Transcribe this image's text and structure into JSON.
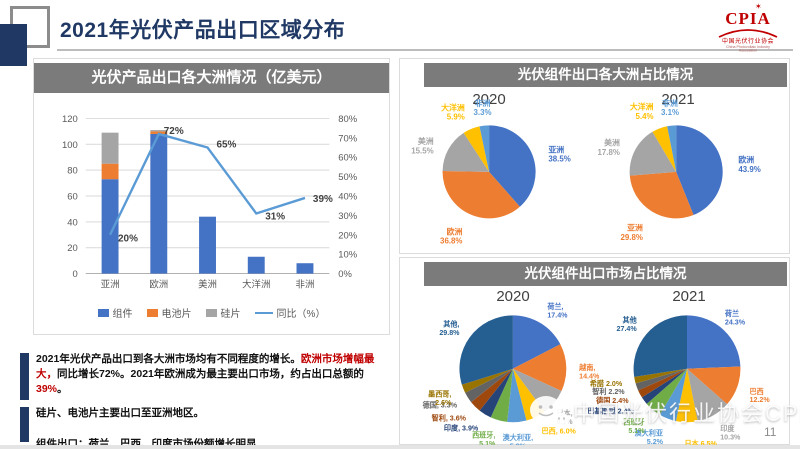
{
  "slide": {
    "title": "2021年光伏产品出口区域分布",
    "page_number": "11",
    "watermark": "中国光伏行业协会CPIA",
    "logo": {
      "abbr": "CPIA",
      "cn": "中国光伏行业协会",
      "en": "China Photovoltaic Industry Association"
    }
  },
  "notes": {
    "p1": [
      "2021年光伏产品出口到各大洲市场均有不同程度的增长。",
      "欧洲市场增幅最大，",
      "同比增长72%。2021年欧洲成为最主要出口市场，约占出口总额的",
      "39%",
      "。"
    ],
    "p2": "硅片、电池片主要出口至亚洲地区。",
    "p3": "组件出口：荷兰、巴西、印度市场份额增长明显"
  },
  "chart_data": [
    {
      "type": "bar",
      "title": "光伏产品出口各大洲情况（亿美元）",
      "categories": [
        "亚洲",
        "欧洲",
        "美洲",
        "大洋洲",
        "非洲"
      ],
      "series": [
        {
          "name": "组件",
          "type": "bar",
          "color": "#4472C4",
          "values": [
            73,
            108,
            44,
            13,
            8
          ]
        },
        {
          "name": "电池片",
          "type": "bar",
          "color": "#ED7D31",
          "values": [
            12,
            2,
            0,
            0,
            0
          ]
        },
        {
          "name": "硅片",
          "type": "bar",
          "color": "#A5A5A5",
          "values": [
            24,
            1,
            0,
            0,
            0
          ]
        },
        {
          "name": "同比（%）",
          "type": "line",
          "color": "#5B9BD5",
          "values": [
            20,
            72,
            65,
            31,
            39
          ],
          "point_labels": [
            "20%",
            "72%",
            "65%",
            "31%",
            "39%"
          ]
        }
      ],
      "y_left": {
        "min": 0,
        "max": 120,
        "step": 20,
        "ticks": [
          "0",
          "20",
          "40",
          "60",
          "80",
          "100",
          "120"
        ]
      },
      "y_right": {
        "max": 80,
        "ticks": [
          "0%",
          "10%",
          "20%",
          "30%",
          "40%",
          "50%",
          "60%",
          "70%",
          "80%"
        ]
      },
      "grid": true,
      "legend_position": "bottom"
    },
    {
      "type": "pie",
      "title": "光伏组件出口各大洲占比情况",
      "charts": [
        {
          "year": "2020",
          "slices": [
            {
              "name": "亚洲",
              "value": 38.5,
              "color": "#4472C4",
              "label": "亚洲\n38.5%"
            },
            {
              "name": "欧洲",
              "value": 36.8,
              "color": "#ED7D31",
              "label": "欧洲\n36.8%"
            },
            {
              "name": "美洲",
              "value": 15.5,
              "color": "#A5A5A5",
              "label": "美洲\n15.5%"
            },
            {
              "name": "大洋洲",
              "value": 5.9,
              "color": "#FFC000",
              "label": "大洋洲\n5.9%"
            },
            {
              "name": "非洲",
              "value": 3.3,
              "color": "#5B9BD5",
              "label": "非洲\n3.3%"
            }
          ]
        },
        {
          "year": "2021",
          "slices": [
            {
              "name": "欧洲",
              "value": 43.9,
              "color": "#4472C4",
              "label": "欧洲\n43.9%"
            },
            {
              "name": "亚洲",
              "value": 29.8,
              "color": "#ED7D31",
              "label": "亚洲\n29.8%"
            },
            {
              "name": "美洲",
              "value": 17.8,
              "color": "#A5A5A5",
              "label": "美洲\n17.8%"
            },
            {
              "name": "大洋洲",
              "value": 5.4,
              "color": "#FFC000",
              "label": "大洋洲\n5.4%"
            },
            {
              "name": "非洲",
              "value": 3.1,
              "color": "#5B9BD5",
              "label": "非洲\n3.1%"
            }
          ]
        }
      ]
    },
    {
      "type": "pie",
      "title": "光伏组件出口市场占比情况",
      "charts": [
        {
          "year": "2020",
          "slices": [
            {
              "name": "荷兰",
              "value": 17.4,
              "color": "#4472C4",
              "label": "荷兰,\n17.4%"
            },
            {
              "name": "越南",
              "value": 14.4,
              "color": "#ED7D31",
              "label": "越南,\n14.4%"
            },
            {
              "name": "日本",
              "value": 8.1,
              "color": "#A5A5A5",
              "label": "日本,\n8.1%"
            },
            {
              "name": "巴西",
              "value": 6.0,
              "color": "#FFC000",
              "label": "巴西, 6.0%"
            },
            {
              "name": "澳大利亚",
              "value": 5.8,
              "color": "#5B9BD5",
              "label": "澳大利亚,\n5.8%"
            },
            {
              "name": "西班牙",
              "value": 5.1,
              "color": "#70AD47",
              "label": "西班牙,\n5.1%"
            },
            {
              "name": "印度",
              "value": 3.9,
              "color": "#264478",
              "label": "印度, 3.9%"
            },
            {
              "name": "智利",
              "value": 3.6,
              "color": "#9E480E",
              "label": "智利, 3.6%"
            },
            {
              "name": "德国",
              "value": 3.3,
              "color": "#636363",
              "label": "德国, 3.3%"
            },
            {
              "name": "墨西哥",
              "value": 2.6,
              "color": "#997300",
              "label": "墨西哥,\n2.6%"
            },
            {
              "name": "其他",
              "value": 29.8,
              "color": "#255E91",
              "label": "其他,\n29.8%"
            }
          ]
        },
        {
          "year": "2021",
          "slices": [
            {
              "name": "荷兰",
              "value": 24.3,
              "color": "#4472C4",
              "label": "荷兰\n24.3%"
            },
            {
              "name": "巴西",
              "value": 12.2,
              "color": "#ED7D31",
              "label": "巴西\n12.2%"
            },
            {
              "name": "印度",
              "value": 10.3,
              "color": "#A5A5A5",
              "label": "印度\n10.3%"
            },
            {
              "name": "日本",
              "value": 6.5,
              "color": "#FFC000",
              "label": "日本 6.5%"
            },
            {
              "name": "澳大利亚",
              "value": 5.2,
              "color": "#5B9BD5",
              "label": "澳大利亚\n5.2%"
            },
            {
              "name": "西班牙",
              "value": 5.1,
              "color": "#70AD47",
              "label": "西班牙\n5.1%"
            },
            {
              "name": "巴基斯坦",
              "value": 2.4,
              "color": "#264478",
              "label": "巴基斯坦 2.4%"
            },
            {
              "name": "德国",
              "value": 2.4,
              "color": "#9E480E",
              "label": "德国 2.4%"
            },
            {
              "name": "智利",
              "value": 2.2,
              "color": "#636363",
              "label": "智利 2.2%"
            },
            {
              "name": "希腊",
              "value": 2.0,
              "color": "#997300",
              "label": "希腊 2.0%"
            },
            {
              "name": "其他",
              "value": 27.4,
              "color": "#255E91",
              "label": "其他\n27.4%"
            }
          ]
        }
      ]
    }
  ]
}
